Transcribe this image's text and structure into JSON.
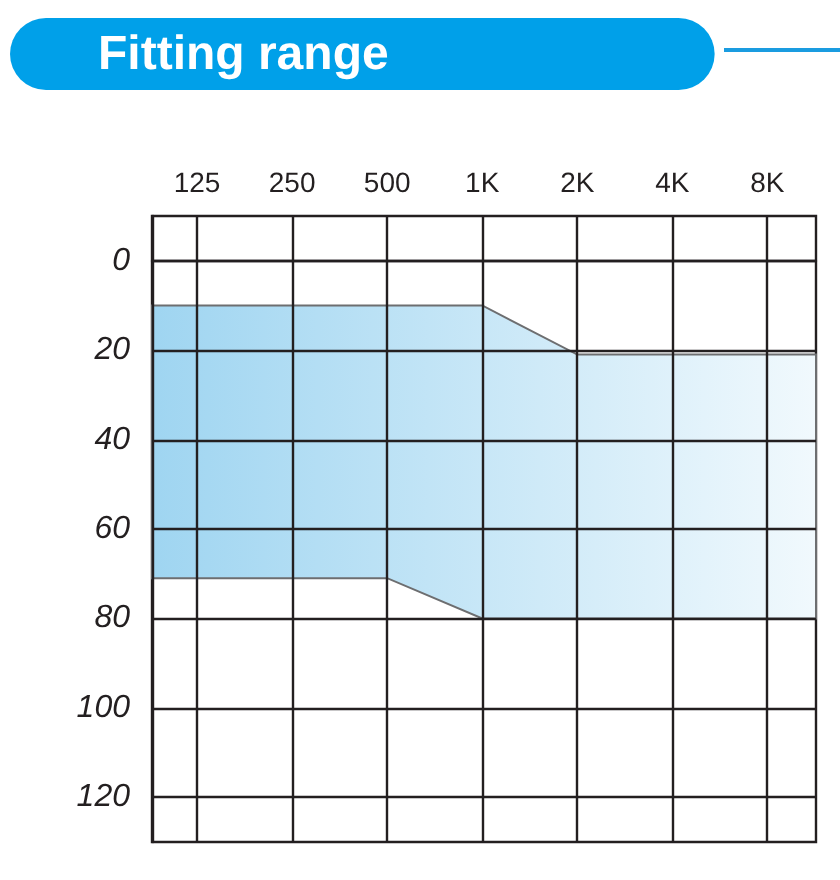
{
  "chart_data": {
    "type": "area",
    "title": "Fitting range",
    "x": [
      90,
      500,
      1000,
      2000,
      11400
    ],
    "series": [
      {
        "color": "#9fd5f1",
        "values": [
          null,
          null,
          null,
          null,
          null
        ],
        "lower": [
          10,
          10,
          10,
          21,
          21
        ],
        "upper": [
          71,
          71,
          80,
          80,
          80
        ]
      }
    ],
    "xlim": [
      90,
      11400
    ],
    "xticks": [
      125,
      250,
      500,
      {
        "value": 1000,
        "label": "1K"
      },
      {
        "value": 2000,
        "label": "2K"
      },
      {
        "value": 4000,
        "label": "4K"
      },
      {
        "value": 8000,
        "label": "8K"
      }
    ],
    "ylim": [
      130,
      -10
    ],
    "yticks": [
      0,
      20,
      40,
      60,
      80,
      100,
      120
    ],
    "log": "x",
    "grid": true
  }
}
